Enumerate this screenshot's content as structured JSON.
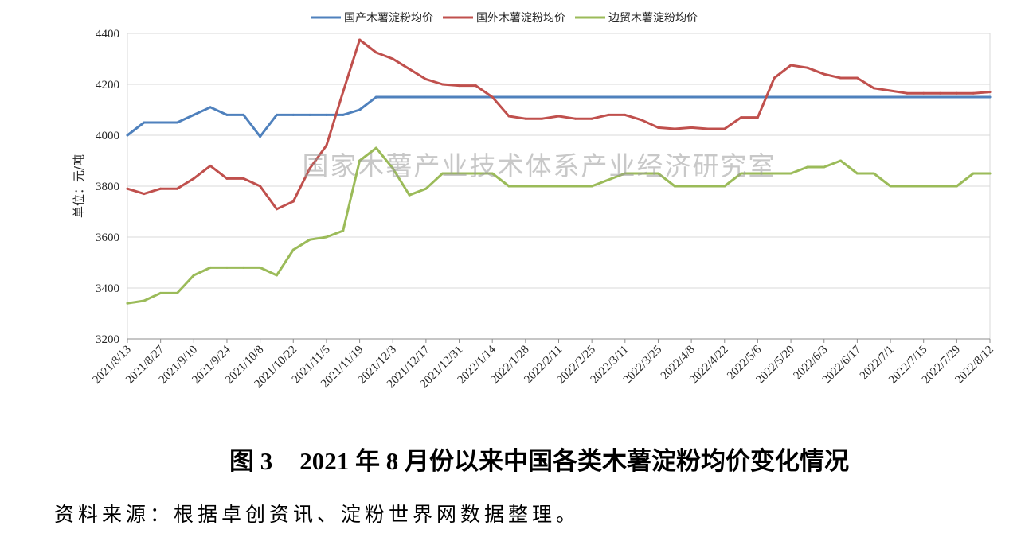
{
  "chart_data": {
    "type": "line",
    "figure_label": "图 3",
    "title": "2021 年 8 月份以来中国各类木薯淀粉均价变化情况",
    "xlabel": "",
    "ylabel": "单位：元/吨",
    "ylim": [
      3200,
      4400
    ],
    "yticks": [
      3200,
      3400,
      3600,
      3800,
      4000,
      4200,
      4400
    ],
    "grid": true,
    "legend_position": "top",
    "x": [
      "2021/8/13",
      "2021/8/20",
      "2021/8/27",
      "2021/9/3",
      "2021/9/10",
      "2021/9/17",
      "2021/9/24",
      "2021/10/1",
      "2021/10/8",
      "2021/10/15",
      "2021/10/22",
      "2021/10/29",
      "2021/11/5",
      "2021/11/12",
      "2021/11/19",
      "2021/11/26",
      "2021/12/3",
      "2021/12/10",
      "2021/12/17",
      "2021/12/24",
      "2021/12/31",
      "2022/1/7",
      "2022/1/14",
      "2022/1/21",
      "2022/1/28",
      "2022/2/4",
      "2022/2/11",
      "2022/2/18",
      "2022/2/25",
      "2022/3/4",
      "2022/3/11",
      "2022/3/18",
      "2022/3/25",
      "2022/4/1",
      "2022/4/8",
      "2022/4/15",
      "2022/4/22",
      "2022/4/29",
      "2022/5/6",
      "2022/5/13",
      "2022/5/20",
      "2022/5/27",
      "2022/6/3",
      "2022/6/10",
      "2022/6/17",
      "2022/6/24",
      "2022/7/1",
      "2022/7/8",
      "2022/7/15",
      "2022/7/22",
      "2022/7/29",
      "2022/8/5",
      "2022/8/12"
    ],
    "xticks": [
      "2021/8/13",
      "2021/8/27",
      "2021/9/10",
      "2021/9/24",
      "2021/10/8",
      "2021/10/22",
      "2021/11/5",
      "2021/11/19",
      "2021/12/3",
      "2021/12/17",
      "2021/12/31",
      "2022/1/14",
      "2022/1/28",
      "2022/2/11",
      "2022/2/25",
      "2022/3/11",
      "2022/3/25",
      "2022/4/8",
      "2022/4/22",
      "2022/5/6",
      "2022/5/20",
      "2022/6/3",
      "2022/6/17",
      "2022/7/1",
      "2022/7/15",
      "2022/7/29",
      "2022/8/12"
    ],
    "series": [
      {
        "name": "国产木薯淀粉均价",
        "color": "#4F81BD",
        "values": [
          4000,
          4050,
          4050,
          4050,
          4080,
          4110,
          4080,
          4080,
          3995,
          4080,
          4080,
          4080,
          4080,
          4080,
          4100,
          4150,
          4150,
          4150,
          4150,
          4150,
          4150,
          4150,
          4150,
          4150,
          4150,
          4150,
          4150,
          4150,
          4150,
          4150,
          4150,
          4150,
          4150,
          4150,
          4150,
          4150,
          4150,
          4150,
          4150,
          4150,
          4150,
          4150,
          4150,
          4150,
          4150,
          4150,
          4150,
          4150,
          4150,
          4150,
          4150,
          4150,
          4150
        ]
      },
      {
        "name": "国外木薯淀粉均价",
        "color": "#C0504D",
        "values": [
          3790,
          3770,
          3790,
          3790,
          3830,
          3880,
          3830,
          3830,
          3800,
          3710,
          3740,
          3870,
          3960,
          4170,
          4375,
          4325,
          4300,
          4260,
          4220,
          4200,
          4195,
          4195,
          4150,
          4075,
          4065,
          4065,
          4075,
          4065,
          4065,
          4080,
          4080,
          4060,
          4030,
          4025,
          4030,
          4025,
          4025,
          4070,
          4070,
          4225,
          4275,
          4265,
          4240,
          4225,
          4225,
          4185,
          4175,
          4165,
          4165,
          4165,
          4165,
          4165,
          4170
        ]
      },
      {
        "name": "边贸木薯淀粉均价",
        "color": "#9BBB59",
        "values": [
          3340,
          3350,
          3380,
          3380,
          3450,
          3480,
          3480,
          3480,
          3480,
          3450,
          3550,
          3590,
          3600,
          3625,
          3900,
          3950,
          3870,
          3765,
          3790,
          3850,
          3850,
          3850,
          3850,
          3800,
          3800,
          3800,
          3800,
          3800,
          3800,
          3825,
          3850,
          3850,
          3850,
          3800,
          3800,
          3800,
          3800,
          3850,
          3850,
          3850,
          3850,
          3875,
          3875,
          3900,
          3850,
          3850,
          3800,
          3800,
          3800,
          3800,
          3800,
          3850,
          3850
        ]
      }
    ]
  },
  "watermark": "国家木薯产业技术体系产业经济研究室",
  "source_note": "资料来源：根据卓创资讯、淀粉世界网数据整理。"
}
